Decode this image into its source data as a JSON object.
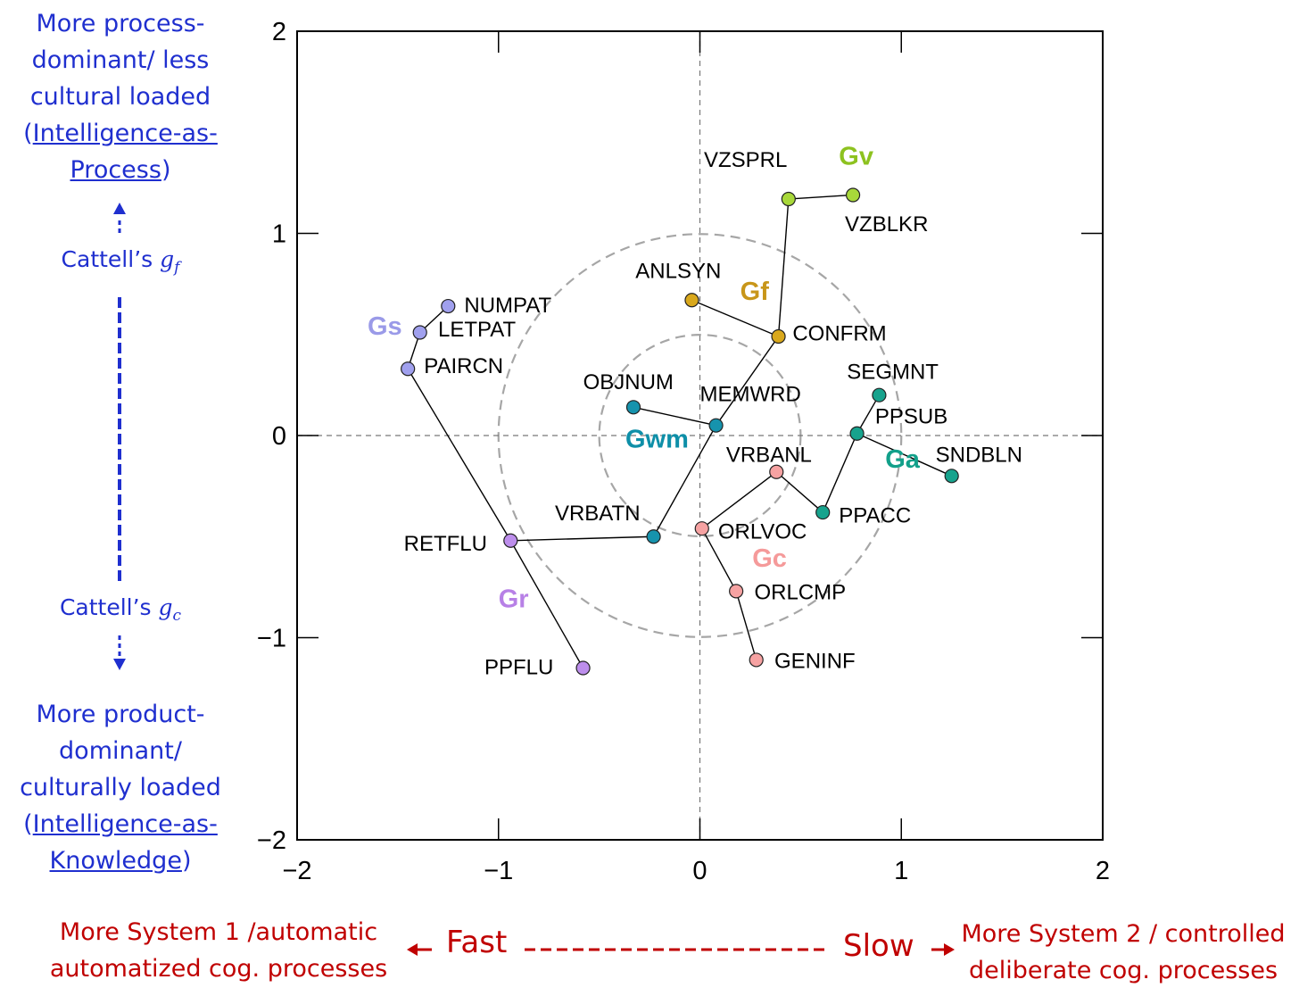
{
  "chart_data": {
    "type": "scatter",
    "xlim": [
      -2,
      2
    ],
    "ylim": [
      -2,
      2
    ],
    "x_ticks": [
      "−2",
      "−1",
      "0",
      "1",
      "2"
    ],
    "y_ticks": [
      "2",
      "1",
      "0",
      "−1",
      "−2"
    ],
    "reference_circles_radius": [
      0.5,
      1.0
    ],
    "groups": [
      {
        "name": "Gv",
        "color": "#8dc21f",
        "label": {
          "x": 0.69,
          "y": 1.34
        }
      },
      {
        "name": "Gf",
        "color": "#c8961a",
        "label": {
          "x": 0.2,
          "y": 0.67
        }
      },
      {
        "name": "Gs",
        "color": "#9a9ae8",
        "label": {
          "x": -1.65,
          "y": 0.5
        }
      },
      {
        "name": "Gwm",
        "color": "#0e8fa8",
        "label": {
          "x": -0.37,
          "y": -0.06
        }
      },
      {
        "name": "Ga",
        "color": "#12a08a",
        "label": {
          "x": 0.92,
          "y": -0.16
        }
      },
      {
        "name": "Gc",
        "color": "#f59a9a",
        "label": {
          "x": 0.26,
          "y": -0.65
        }
      },
      {
        "name": "Gr",
        "color": "#b780e6",
        "label": {
          "x": -1.0,
          "y": -0.85
        }
      }
    ],
    "points": [
      {
        "name": "VZSPRL",
        "x": 0.44,
        "y": 1.17,
        "group": "Gv",
        "fill": "#a8d83a",
        "lx": 0.02,
        "ly": 1.33,
        "anchor": "start"
      },
      {
        "name": "VZBLKR",
        "x": 0.76,
        "y": 1.19,
        "group": "Gv",
        "fill": "#a8d83a",
        "lx": 0.72,
        "ly": 1.01,
        "anchor": "start"
      },
      {
        "name": "ANLSYN",
        "x": -0.04,
        "y": 0.67,
        "group": "Gf",
        "fill": "#d9a81c",
        "lx": -0.32,
        "ly": 0.78,
        "anchor": "start"
      },
      {
        "name": "CONFRM",
        "x": 0.39,
        "y": 0.49,
        "group": "Gf",
        "fill": "#d9a81c",
        "lx": 0.46,
        "ly": 0.47,
        "anchor": "start"
      },
      {
        "name": "NUMPAT",
        "x": -1.25,
        "y": 0.64,
        "group": "Gs",
        "fill": "#a0a0ee",
        "lx": -1.17,
        "ly": 0.61,
        "anchor": "start"
      },
      {
        "name": "LETPAT",
        "x": -1.39,
        "y": 0.51,
        "group": "Gs",
        "fill": "#a0a0ee",
        "lx": -1.3,
        "ly": 0.49,
        "anchor": "start"
      },
      {
        "name": "PAIRCN",
        "x": -1.45,
        "y": 0.33,
        "group": "Gs",
        "fill": "#a0a0ee",
        "lx": -1.37,
        "ly": 0.31,
        "anchor": "start"
      },
      {
        "name": "OBJNUM",
        "x": -0.33,
        "y": 0.14,
        "group": "Gwm",
        "fill": "#1693ad",
        "lx": -0.58,
        "ly": 0.23,
        "anchor": "start"
      },
      {
        "name": "MEMWRD",
        "x": 0.08,
        "y": 0.05,
        "group": "Gwm",
        "fill": "#1693ad",
        "lx": 0.0,
        "ly": 0.17,
        "anchor": "start"
      },
      {
        "name": "VRBATN",
        "x": -0.23,
        "y": -0.5,
        "group": "Gwm",
        "fill": "#1693ad",
        "lx": -0.72,
        "ly": -0.42,
        "anchor": "start"
      },
      {
        "name": "SEGMNT",
        "x": 0.89,
        "y": 0.2,
        "group": "Ga",
        "fill": "#17a38d",
        "lx": 0.73,
        "ly": 0.28,
        "anchor": "start"
      },
      {
        "name": "PPSUB",
        "x": 0.78,
        "y": 0.01,
        "group": "Ga",
        "fill": "#17a38d",
        "lx": 0.87,
        "ly": 0.06,
        "anchor": "start"
      },
      {
        "name": "SNDBLN",
        "x": 1.25,
        "y": -0.2,
        "group": "Ga",
        "fill": "#17a38d",
        "lx": 1.17,
        "ly": -0.13,
        "anchor": "start"
      },
      {
        "name": "PPACC",
        "x": 0.61,
        "y": -0.38,
        "group": "Ga",
        "fill": "#17a38d",
        "lx": 0.69,
        "ly": -0.43,
        "anchor": "start"
      },
      {
        "name": "VRBANL",
        "x": 0.38,
        "y": -0.18,
        "group": "Gc",
        "fill": "#f6a2a2",
        "lx": 0.13,
        "ly": -0.13,
        "anchor": "start"
      },
      {
        "name": "ORLVOC",
        "x": 0.01,
        "y": -0.46,
        "group": "Gc",
        "fill": "#f6a2a2",
        "lx": 0.09,
        "ly": -0.51,
        "anchor": "start"
      },
      {
        "name": "ORLCMP",
        "x": 0.18,
        "y": -0.77,
        "group": "Gc",
        "fill": "#f6a2a2",
        "lx": 0.27,
        "ly": -0.81,
        "anchor": "start"
      },
      {
        "name": "GENINF",
        "x": 0.28,
        "y": -1.11,
        "group": "Gc",
        "fill": "#f6a2a2",
        "lx": 0.37,
        "ly": -1.15,
        "anchor": "start"
      },
      {
        "name": "RETFLU",
        "x": -0.94,
        "y": -0.52,
        "group": "Gr",
        "fill": "#bd8eec",
        "lx": -1.47,
        "ly": -0.57,
        "anchor": "start"
      },
      {
        "name": "PPFLU",
        "x": -0.58,
        "y": -1.15,
        "group": "Gr",
        "fill": "#bd8eec",
        "lx": -1.07,
        "ly": -1.18,
        "anchor": "start"
      }
    ],
    "edges": [
      [
        "VZSPRL",
        "VZBLKR"
      ],
      [
        "VZSPRL",
        "CONFRM"
      ],
      [
        "ANLSYN",
        "CONFRM"
      ],
      [
        "CONFRM",
        "MEMWRD"
      ],
      [
        "OBJNUM",
        "MEMWRD"
      ],
      [
        "MEMWRD",
        "VRBATN"
      ],
      [
        "VRBATN",
        "RETFLU"
      ],
      [
        "NUMPAT",
        "LETPAT"
      ],
      [
        "LETPAT",
        "PAIRCN"
      ],
      [
        "PAIRCN",
        "RETFLU"
      ],
      [
        "RETFLU",
        "PPFLU"
      ],
      [
        "SEGMNT",
        "PPSUB"
      ],
      [
        "PPSUB",
        "SNDBLN"
      ],
      [
        "PPSUB",
        "PPACC"
      ],
      [
        "PPACC",
        "VRBANL"
      ],
      [
        "VRBANL",
        "ORLVOC"
      ],
      [
        "ORLVOC",
        "ORLCMP"
      ],
      [
        "ORLCMP",
        "GENINF"
      ]
    ]
  },
  "left_axis": {
    "top_lines": [
      "More process-",
      "dominant/ less",
      "cultural loaded"
    ],
    "top_link_1": "Intelligence-as-",
    "top_link_2": "Process",
    "gf_prefix": "Cattell’s",
    "gf_symbol": "g",
    "gf_sub": "f",
    "gc_prefix": "Cattell’s",
    "gc_symbol": "g",
    "gc_sub": "c",
    "bottom_lines": [
      "More product-",
      "dominant/",
      "culturally loaded"
    ],
    "bottom_link_1": "Intelligence-as-",
    "bottom_link_2": "Knowledge"
  },
  "bottom_axis": {
    "left_line_1": "More System 1 /automatic",
    "left_line_2": "automatized cog. processes",
    "fast_label": "Fast",
    "slow_label": "Slow",
    "right_line_1": "More System 2 / controlled",
    "right_line_2": "deliberate cog. processes"
  },
  "colors": {
    "arrow_blue": "#1f2fcf",
    "arrow_red": "#c00000"
  }
}
